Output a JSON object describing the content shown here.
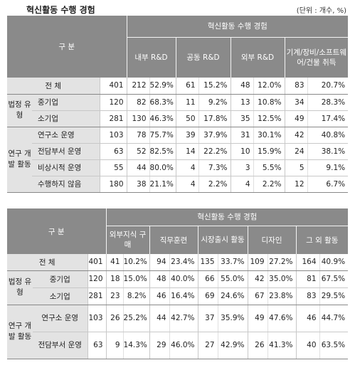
{
  "title": "혁신활동 수행 경험",
  "unit": "(단위 : 개수, %)",
  "table1": {
    "corner": "구 분",
    "group_header": "혁신활동 수행 경험",
    "columns": [
      "내부 R&D",
      "공동 R&D",
      "외부 R&D",
      "기계/장비/소프트웨어/건물 취득"
    ],
    "rows": [
      {
        "group": "",
        "label": "전 체",
        "total": "401",
        "cells": [
          "212",
          "52.9%",
          "61",
          "15.2%",
          "48",
          "12.0%",
          "83",
          "20.7%"
        ]
      },
      {
        "group": "법정 유형",
        "label": "중기업",
        "total": "120",
        "cells": [
          "82",
          "68.3%",
          "11",
          "9.2%",
          "13",
          "10.8%",
          "34",
          "28.3%"
        ]
      },
      {
        "group": "",
        "label": "소기업",
        "total": "281",
        "cells": [
          "130",
          "46.3%",
          "50",
          "17.8%",
          "35",
          "12.5%",
          "49",
          "17.4%"
        ]
      },
      {
        "group": "연구 개발 활동",
        "label": "연구소 운영",
        "total": "103",
        "cells": [
          "78",
          "75.7%",
          "39",
          "37.9%",
          "31",
          "30.1%",
          "42",
          "40.8%"
        ]
      },
      {
        "group": "",
        "label": "전담부서 운영",
        "total": "63",
        "cells": [
          "52",
          "82.5%",
          "14",
          "22.2%",
          "10",
          "15.9%",
          "24",
          "38.1%"
        ]
      },
      {
        "group": "",
        "label": "비상시적 운영",
        "total": "55",
        "cells": [
          "44",
          "80.0%",
          "4",
          "7.3%",
          "3",
          "5.5%",
          "5",
          "9.1%"
        ]
      },
      {
        "group": "",
        "label": "수행하지 않음",
        "total": "180",
        "cells": [
          "38",
          "21.1%",
          "4",
          "2.2%",
          "4",
          "2.2%",
          "12",
          "6.7%"
        ]
      }
    ]
  },
  "table2": {
    "corner": "구 분",
    "group_header": "혁신활동 수행 경험",
    "columns": [
      "외부지식 구매",
      "직무훈련",
      "시장출시 활동",
      "디자인",
      "그 외 활동"
    ],
    "rows": [
      {
        "group": "",
        "label": "전 체",
        "total": "401",
        "cells": [
          "41",
          "10.2%",
          "94",
          "23.4%",
          "135",
          "33.7%",
          "109",
          "27.2%",
          "164",
          "40.9%"
        ]
      },
      {
        "group": "법정 유형",
        "label": "중기업",
        "total": "120",
        "cells": [
          "18",
          "15.0%",
          "48",
          "40.0%",
          "66",
          "55.0%",
          "42",
          "35.0%",
          "81",
          "67.5%"
        ]
      },
      {
        "group": "",
        "label": "소기업",
        "total": "281",
        "cells": [
          "23",
          "8.2%",
          "46",
          "16.4%",
          "69",
          "24.6%",
          "67",
          "23.8%",
          "83",
          "29.5%"
        ]
      },
      {
        "group": "연구 개발 활동",
        "label": "연구소 운영",
        "total": "103",
        "cells": [
          "26",
          "25.2%",
          "44",
          "42.7%",
          "37",
          "35.9%",
          "49",
          "47.6%",
          "46",
          "44.7%"
        ]
      },
      {
        "group": "",
        "label": "전담부서 운영",
        "total": "63",
        "cells": [
          "9",
          "14.3%",
          "29",
          "46.0%",
          "27",
          "42.9%",
          "26",
          "41.3%",
          "40",
          "63.5%"
        ]
      }
    ]
  }
}
